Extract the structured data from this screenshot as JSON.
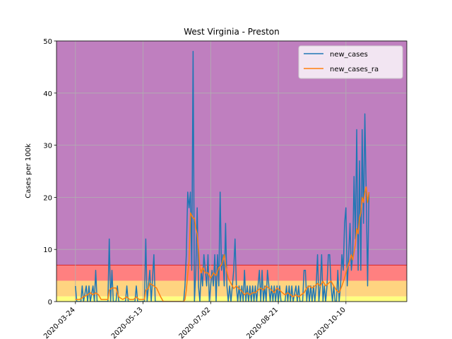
{
  "chart_data": {
    "type": "line",
    "title": "West Virginia - Preston",
    "xlabel": "",
    "ylabel": "Cases per 100k",
    "ylim": [
      0,
      50
    ],
    "yticks": [
      0,
      10,
      20,
      30,
      40,
      50
    ],
    "xlim": [
      "2020-03-10",
      "2020-11-24"
    ],
    "xticks": [
      "2020-03-24",
      "2020-05-13",
      "2020-07-02",
      "2020-08-21",
      "2020-10-10"
    ],
    "x_tick_rotation": 45,
    "grid": true,
    "legend_position": "top-right",
    "background_bands": [
      {
        "from": 0,
        "to": 1,
        "color": "#ffff80"
      },
      {
        "from": 1,
        "to": 4,
        "color": "#ffd480"
      },
      {
        "from": 4,
        "to": 7,
        "color": "#ff8080"
      },
      {
        "from": 7,
        "to": 50,
        "color": "#bf7fbf"
      }
    ],
    "threshold_line": {
      "y": 7,
      "color": "#d62728"
    },
    "series": [
      {
        "name": "new_cases",
        "color": "#1f77b4",
        "points": [
          [
            "2020-03-24",
            3
          ],
          [
            "2020-03-25",
            0
          ],
          [
            "2020-03-28",
            0
          ],
          [
            "2020-03-29",
            3
          ],
          [
            "2020-03-30",
            0
          ],
          [
            "2020-04-01",
            3
          ],
          [
            "2020-04-02",
            0
          ],
          [
            "2020-04-03",
            3
          ],
          [
            "2020-04-04",
            0
          ],
          [
            "2020-04-06",
            3
          ],
          [
            "2020-04-07",
            0
          ],
          [
            "2020-04-08",
            6
          ],
          [
            "2020-04-09",
            0
          ],
          [
            "2020-04-17",
            0
          ],
          [
            "2020-04-18",
            12
          ],
          [
            "2020-04-19",
            0
          ],
          [
            "2020-04-20",
            6
          ],
          [
            "2020-04-21",
            0
          ],
          [
            "2020-04-23",
            0
          ],
          [
            "2020-04-24",
            3
          ],
          [
            "2020-04-25",
            0
          ],
          [
            "2020-04-30",
            0
          ],
          [
            "2020-05-01",
            3
          ],
          [
            "2020-05-02",
            0
          ],
          [
            "2020-05-07",
            0
          ],
          [
            "2020-05-08",
            3
          ],
          [
            "2020-05-09",
            0
          ],
          [
            "2020-05-14",
            0
          ],
          [
            "2020-05-15",
            12
          ],
          [
            "2020-05-16",
            0
          ],
          [
            "2020-05-17",
            3
          ],
          [
            "2020-05-18",
            6
          ],
          [
            "2020-05-19",
            0
          ],
          [
            "2020-05-21",
            9
          ],
          [
            "2020-05-22",
            0
          ],
          [
            "2020-06-12",
            0
          ],
          [
            "2020-06-13",
            3
          ],
          [
            "2020-06-14",
            9
          ],
          [
            "2020-06-15",
            21
          ],
          [
            "2020-06-16",
            18
          ],
          [
            "2020-06-17",
            21
          ],
          [
            "2020-06-18",
            6
          ],
          [
            "2020-06-19",
            48
          ],
          [
            "2020-06-20",
            0
          ],
          [
            "2020-06-21",
            6
          ],
          [
            "2020-06-22",
            18
          ],
          [
            "2020-06-23",
            3
          ],
          [
            "2020-06-24",
            0
          ],
          [
            "2020-06-25",
            6
          ],
          [
            "2020-06-26",
            3
          ],
          [
            "2020-06-27",
            9
          ],
          [
            "2020-06-28",
            6
          ],
          [
            "2020-06-29",
            3
          ],
          [
            "2020-06-30",
            9
          ],
          [
            "2020-07-01",
            0
          ],
          [
            "2020-07-02",
            3
          ],
          [
            "2020-07-03",
            6
          ],
          [
            "2020-07-04",
            3
          ],
          [
            "2020-07-05",
            9
          ],
          [
            "2020-07-06",
            0
          ],
          [
            "2020-07-07",
            9
          ],
          [
            "2020-07-08",
            3
          ],
          [
            "2020-07-09",
            21
          ],
          [
            "2020-07-10",
            6
          ],
          [
            "2020-07-11",
            9
          ],
          [
            "2020-07-12",
            3
          ],
          [
            "2020-07-13",
            15
          ],
          [
            "2020-07-14",
            3
          ],
          [
            "2020-07-15",
            0
          ],
          [
            "2020-07-16",
            3
          ],
          [
            "2020-07-17",
            0
          ],
          [
            "2020-07-18",
            3
          ],
          [
            "2020-07-19",
            6
          ],
          [
            "2020-07-20",
            12
          ],
          [
            "2020-07-21",
            3
          ],
          [
            "2020-07-22",
            0
          ],
          [
            "2020-07-23",
            3
          ],
          [
            "2020-07-24",
            0
          ],
          [
            "2020-07-25",
            3
          ],
          [
            "2020-07-26",
            0
          ],
          [
            "2020-07-27",
            6
          ],
          [
            "2020-07-28",
            0
          ],
          [
            "2020-07-29",
            3
          ],
          [
            "2020-07-30",
            0
          ],
          [
            "2020-07-31",
            3
          ],
          [
            "2020-08-01",
            0
          ],
          [
            "2020-08-02",
            3
          ],
          [
            "2020-08-03",
            0
          ],
          [
            "2020-08-04",
            3
          ],
          [
            "2020-08-05",
            0
          ],
          [
            "2020-08-06",
            3
          ],
          [
            "2020-08-07",
            6
          ],
          [
            "2020-08-08",
            0
          ],
          [
            "2020-08-09",
            6
          ],
          [
            "2020-08-10",
            0
          ],
          [
            "2020-08-11",
            3
          ],
          [
            "2020-08-12",
            0
          ],
          [
            "2020-08-13",
            6
          ],
          [
            "2020-08-14",
            3
          ],
          [
            "2020-08-15",
            0
          ],
          [
            "2020-08-16",
            3
          ],
          [
            "2020-08-17",
            0
          ],
          [
            "2020-08-18",
            3
          ],
          [
            "2020-08-19",
            0
          ],
          [
            "2020-08-20",
            3
          ],
          [
            "2020-08-21",
            0
          ],
          [
            "2020-08-22",
            3
          ],
          [
            "2020-08-23",
            0
          ],
          [
            "2020-08-26",
            0
          ],
          [
            "2020-08-27",
            3
          ],
          [
            "2020-08-28",
            0
          ],
          [
            "2020-08-29",
            3
          ],
          [
            "2020-08-30",
            0
          ],
          [
            "2020-08-31",
            3
          ],
          [
            "2020-09-01",
            0
          ],
          [
            "2020-09-03",
            3
          ],
          [
            "2020-09-04",
            0
          ],
          [
            "2020-09-05",
            3
          ],
          [
            "2020-09-06",
            0
          ],
          [
            "2020-09-08",
            0
          ],
          [
            "2020-09-09",
            6
          ],
          [
            "2020-09-10",
            6
          ],
          [
            "2020-09-11",
            0
          ],
          [
            "2020-09-12",
            3
          ],
          [
            "2020-09-13",
            0
          ],
          [
            "2020-09-14",
            3
          ],
          [
            "2020-09-15",
            0
          ],
          [
            "2020-09-16",
            3
          ],
          [
            "2020-09-17",
            0
          ],
          [
            "2020-09-18",
            3
          ],
          [
            "2020-09-19",
            9
          ],
          [
            "2020-09-20",
            0
          ],
          [
            "2020-09-21",
            3
          ],
          [
            "2020-09-22",
            9
          ],
          [
            "2020-09-23",
            0
          ],
          [
            "2020-09-24",
            3
          ],
          [
            "2020-09-25",
            0
          ],
          [
            "2020-09-26",
            3
          ],
          [
            "2020-09-27",
            9
          ],
          [
            "2020-09-28",
            9
          ],
          [
            "2020-09-29",
            3
          ],
          [
            "2020-09-30",
            0
          ],
          [
            "2020-10-01",
            3
          ],
          [
            "2020-10-02",
            0
          ],
          [
            "2020-10-03",
            0
          ],
          [
            "2020-10-04",
            6
          ],
          [
            "2020-10-05",
            0
          ],
          [
            "2020-10-06",
            3
          ],
          [
            "2020-10-07",
            9
          ],
          [
            "2020-10-08",
            6
          ],
          [
            "2020-10-09",
            15
          ],
          [
            "2020-10-10",
            18
          ],
          [
            "2020-10-11",
            3
          ],
          [
            "2020-10-12",
            9
          ],
          [
            "2020-10-13",
            15
          ],
          [
            "2020-10-14",
            6
          ],
          [
            "2020-10-15",
            9
          ],
          [
            "2020-10-16",
            24
          ],
          [
            "2020-10-17",
            12
          ],
          [
            "2020-10-18",
            33
          ],
          [
            "2020-10-19",
            6
          ],
          [
            "2020-10-20",
            27
          ],
          [
            "2020-10-21",
            6
          ],
          [
            "2020-10-22",
            33
          ],
          [
            "2020-10-23",
            15
          ],
          [
            "2020-10-24",
            36
          ],
          [
            "2020-10-25",
            21
          ],
          [
            "2020-10-26",
            3
          ],
          [
            "2020-10-27",
            21
          ]
        ]
      },
      {
        "name": "new_cases_ra",
        "color": "#ff7f0e",
        "points": [
          [
            "2020-03-24",
            0.4
          ],
          [
            "2020-03-27",
            0.4
          ],
          [
            "2020-03-30",
            0.9
          ],
          [
            "2020-04-02",
            1.3
          ],
          [
            "2020-04-04",
            1.7
          ],
          [
            "2020-04-06",
            1.3
          ],
          [
            "2020-04-08",
            1.7
          ],
          [
            "2020-04-10",
            1.3
          ],
          [
            "2020-04-12",
            0.4
          ],
          [
            "2020-04-14",
            0.4
          ],
          [
            "2020-04-17",
            0.4
          ],
          [
            "2020-04-18",
            2.2
          ],
          [
            "2020-04-20",
            2.6
          ],
          [
            "2020-04-23",
            2.6
          ],
          [
            "2020-04-25",
            0.9
          ],
          [
            "2020-04-28",
            0.4
          ],
          [
            "2020-05-01",
            0.9
          ],
          [
            "2020-05-03",
            0.4
          ],
          [
            "2020-05-06",
            0.4
          ],
          [
            "2020-05-08",
            0.9
          ],
          [
            "2020-05-10",
            0.4
          ],
          [
            "2020-05-14",
            0.4
          ],
          [
            "2020-05-15",
            2.2
          ],
          [
            "2020-05-17",
            2.6
          ],
          [
            "2020-05-18",
            3.5
          ],
          [
            "2020-05-21",
            3.0
          ],
          [
            "2020-05-23",
            2.6
          ],
          [
            "2020-05-26",
            0.9
          ],
          [
            "2020-05-28",
            0.0
          ],
          [
            "2020-06-12",
            0.0
          ],
          [
            "2020-06-13",
            0.4
          ],
          [
            "2020-06-14",
            2.2
          ],
          [
            "2020-06-15",
            5.2
          ],
          [
            "2020-06-16",
            7.8
          ],
          [
            "2020-06-17",
            17
          ],
          [
            "2020-06-18",
            16.5
          ],
          [
            "2020-06-19",
            16
          ],
          [
            "2020-06-20",
            16
          ],
          [
            "2020-06-21",
            14
          ],
          [
            "2020-06-22",
            13
          ],
          [
            "2020-06-23",
            10
          ],
          [
            "2020-06-24",
            6.5
          ],
          [
            "2020-06-25",
            5.5
          ],
          [
            "2020-06-26",
            6.5
          ],
          [
            "2020-06-28",
            5.5
          ],
          [
            "2020-06-30",
            5.5
          ],
          [
            "2020-07-02",
            4.5
          ],
          [
            "2020-07-04",
            5.5
          ],
          [
            "2020-07-06",
            5.0
          ],
          [
            "2020-07-08",
            6.5
          ],
          [
            "2020-07-10",
            7.0
          ],
          [
            "2020-07-12",
            9.0
          ],
          [
            "2020-07-13",
            7.0
          ],
          [
            "2020-07-15",
            4.5
          ],
          [
            "2020-07-17",
            3.5
          ],
          [
            "2020-07-19",
            2.5
          ],
          [
            "2020-07-21",
            3.0
          ],
          [
            "2020-07-23",
            2.5
          ],
          [
            "2020-07-25",
            2.0
          ],
          [
            "2020-07-27",
            1.3
          ],
          [
            "2020-07-29",
            1.7
          ],
          [
            "2020-07-31",
            1.3
          ],
          [
            "2020-08-02",
            1.7
          ],
          [
            "2020-08-04",
            1.7
          ],
          [
            "2020-08-06",
            2.2
          ],
          [
            "2020-08-08",
            2.6
          ],
          [
            "2020-08-10",
            2.2
          ],
          [
            "2020-08-12",
            3.0
          ],
          [
            "2020-08-14",
            2.6
          ],
          [
            "2020-08-16",
            2.2
          ],
          [
            "2020-08-18",
            1.7
          ],
          [
            "2020-08-20",
            2.6
          ],
          [
            "2020-08-22",
            2.2
          ],
          [
            "2020-08-24",
            1.7
          ],
          [
            "2020-08-26",
            1.3
          ],
          [
            "2020-08-28",
            1.7
          ],
          [
            "2020-08-30",
            1.3
          ],
          [
            "2020-09-01",
            0.9
          ],
          [
            "2020-09-03",
            1.3
          ],
          [
            "2020-09-05",
            0.9
          ],
          [
            "2020-09-07",
            1.3
          ],
          [
            "2020-09-09",
            1.7
          ],
          [
            "2020-09-11",
            2.6
          ],
          [
            "2020-09-13",
            3.0
          ],
          [
            "2020-09-15",
            2.6
          ],
          [
            "2020-09-17",
            3.0
          ],
          [
            "2020-09-19",
            3.5
          ],
          [
            "2020-09-21",
            3.0
          ],
          [
            "2020-09-23",
            3.9
          ],
          [
            "2020-09-25",
            3.0
          ],
          [
            "2020-09-27",
            3.5
          ],
          [
            "2020-09-29",
            3.9
          ],
          [
            "2020-10-01",
            3.0
          ],
          [
            "2020-10-03",
            2.2
          ],
          [
            "2020-10-05",
            1.7
          ],
          [
            "2020-10-07",
            3.0
          ],
          [
            "2020-10-09",
            4.5
          ],
          [
            "2020-10-11",
            6.5
          ],
          [
            "2020-10-13",
            8.0
          ],
          [
            "2020-10-14",
            9.0
          ],
          [
            "2020-10-15",
            8.0
          ],
          [
            "2020-10-16",
            9.5
          ],
          [
            "2020-10-17",
            11
          ],
          [
            "2020-10-18",
            14
          ],
          [
            "2020-10-19",
            13
          ],
          [
            "2020-10-20",
            16
          ],
          [
            "2020-10-21",
            17
          ],
          [
            "2020-10-22",
            20
          ],
          [
            "2020-10-23",
            19
          ],
          [
            "2020-10-24",
            21
          ],
          [
            "2020-10-25",
            22
          ],
          [
            "2020-10-26",
            19
          ],
          [
            "2020-10-27",
            21
          ]
        ]
      }
    ]
  }
}
